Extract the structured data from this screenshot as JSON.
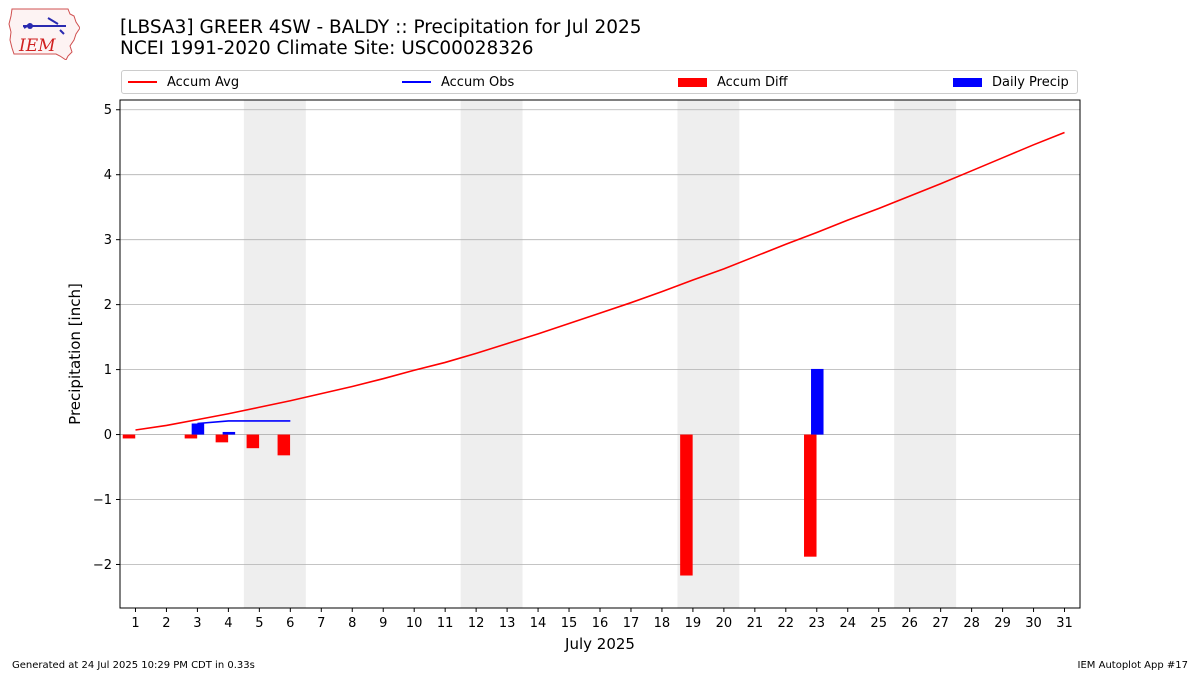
{
  "header": {
    "title_line1": "[LBSA3] GREER 4SW - BALDY :: Precipitation for Jul 2025",
    "title_line2": "NCEI 1991-2020 Climate Site: USC00028326",
    "logo_text": "IEM"
  },
  "footer": {
    "generated": "Generated at 24 Jul 2025 10:29 PM CDT in 0.33s",
    "app": "IEM Autoplot App #17"
  },
  "legend": {
    "accum_avg": "Accum Avg",
    "accum_obs": "Accum Obs",
    "accum_diff": "Accum Diff",
    "daily_precip": "Daily Precip"
  },
  "colors": {
    "accum_avg": "#ff0000",
    "accum_obs": "#0000ff",
    "accum_diff": "#ff0000",
    "daily_precip": "#0000ff",
    "weekend_band": "#eeeeee",
    "grid": "#b0b0b0"
  },
  "chart_data": {
    "type": "bar",
    "xlabel": "July 2025",
    "ylabel": "Precipitation [inch]",
    "xlim": [
      0.5,
      31.5
    ],
    "ylim": [
      -2.67,
      5.15
    ],
    "yticks": [
      -2,
      -1,
      0,
      1,
      2,
      3,
      4,
      5
    ],
    "ytick_labels": [
      "−2",
      "−1",
      "0",
      "1",
      "2",
      "3",
      "4",
      "5"
    ],
    "days": [
      1,
      2,
      3,
      4,
      5,
      6,
      7,
      8,
      9,
      10,
      11,
      12,
      13,
      14,
      15,
      16,
      17,
      18,
      19,
      20,
      21,
      22,
      23,
      24,
      25,
      26,
      27,
      28,
      29,
      30,
      31
    ],
    "grid": "horizontal",
    "weekend_bands": [
      [
        4.5,
        6.5
      ],
      [
        11.5,
        13.5
      ],
      [
        18.5,
        20.5
      ],
      [
        25.5,
        27.5
      ]
    ],
    "series": [
      {
        "name": "Accum Avg",
        "kind": "line",
        "x": [
          1,
          2,
          3,
          4,
          5,
          6,
          7,
          8,
          9,
          10,
          11,
          12,
          13,
          14,
          15,
          16,
          17,
          18,
          19,
          20,
          21,
          22,
          23,
          24,
          25,
          26,
          27,
          28,
          29,
          30,
          31
        ],
        "values": [
          0.07,
          0.14,
          0.23,
          0.32,
          0.42,
          0.52,
          0.63,
          0.74,
          0.86,
          0.99,
          1.11,
          1.25,
          1.4,
          1.55,
          1.71,
          1.87,
          2.03,
          2.2,
          2.38,
          2.55,
          2.74,
          2.93,
          3.11,
          3.3,
          3.48,
          3.67,
          3.86,
          4.06,
          4.26,
          4.46,
          4.65
        ]
      },
      {
        "name": "Accum Obs",
        "kind": "line",
        "x": [
          3,
          4,
          5,
          6
        ],
        "values": [
          0.17,
          0.21,
          0.21,
          0.21
        ]
      },
      {
        "name": "Accum Diff",
        "kind": "bar",
        "x": [
          1,
          3,
          4,
          5,
          6,
          19,
          23
        ],
        "values": [
          -0.06,
          -0.06,
          -0.12,
          -0.21,
          -0.32,
          -2.17,
          -1.88
        ]
      },
      {
        "name": "Daily Precip",
        "kind": "bar",
        "x": [
          3,
          4,
          23
        ],
        "values": [
          0.17,
          0.04,
          1.01
        ]
      }
    ]
  }
}
